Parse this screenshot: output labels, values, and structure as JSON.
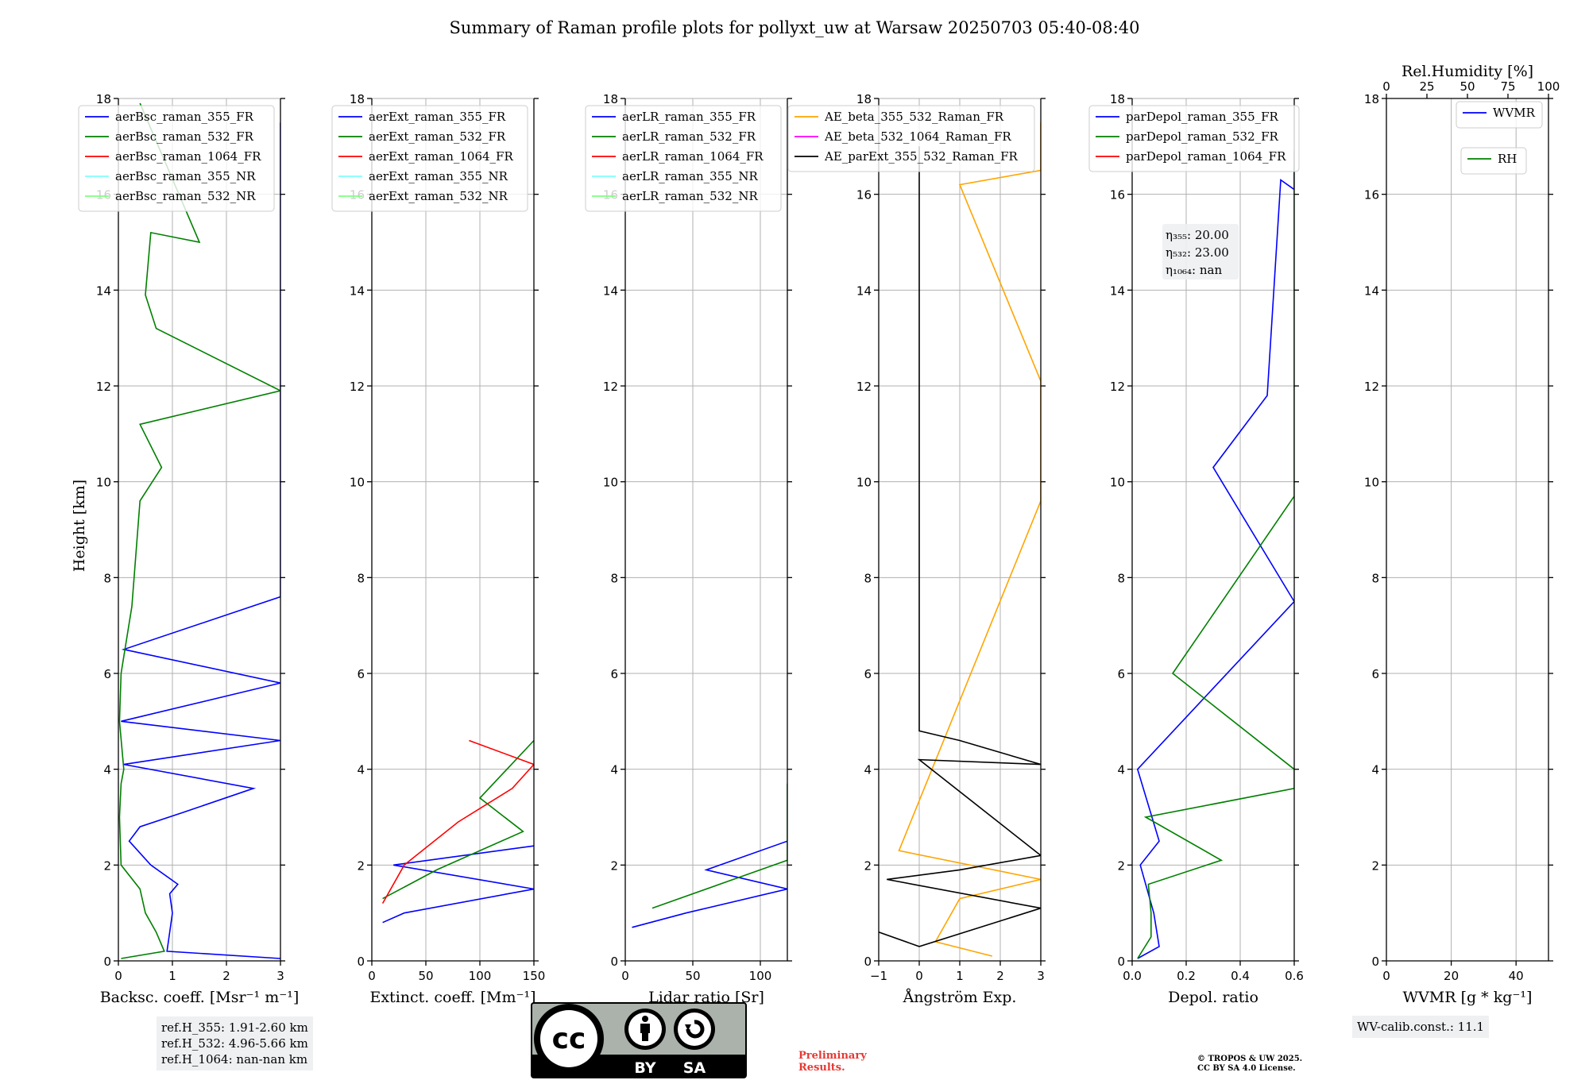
{
  "title": "Summary of Raman profile plots for pollyxt_uw at Warsaw 20250703 05:40-08:40",
  "ylabel": "Height [km]",
  "colors": {
    "blue": "#0000ff",
    "green": "#008000",
    "red": "#ff0000",
    "cyan": "#7fffff",
    "lightgreen": "#7fff7f",
    "orange": "#ffa500",
    "magenta": "#ff00ff",
    "black": "#000000"
  },
  "chart_data": [
    {
      "id": "bsc",
      "type": "line",
      "xlabel": "Backsc. coeff. [Msr⁻¹ m⁻¹]",
      "xlim": [
        0,
        3
      ],
      "ylim": [
        0,
        18
      ],
      "xticks": [
        "0",
        "1",
        "2",
        "3"
      ],
      "xtick_vals": [
        0,
        1,
        2,
        3
      ],
      "yticks": [
        "0",
        "2",
        "4",
        "6",
        "8",
        "10",
        "12",
        "14",
        "16",
        "18"
      ],
      "legend": [
        "aerBsc_raman_355_FR",
        "aerBsc_raman_532_FR",
        "aerBsc_raman_1064_FR",
        "aerBsc_raman_355_NR",
        "aerBsc_raman_532_NR"
      ],
      "legend_colors": [
        "blue",
        "green",
        "red",
        "cyan",
        "lightgreen"
      ],
      "series": [
        {
          "name": "aerBsc_raman_355_FR",
          "color": "blue",
          "points": [
            [
              3,
              0.05
            ],
            [
              0.9,
              0.2
            ],
            [
              0.95,
              0.6
            ],
            [
              1.0,
              1.0
            ],
            [
              0.95,
              1.4
            ],
            [
              1.1,
              1.6
            ],
            [
              0.6,
              2.0
            ],
            [
              0.2,
              2.5
            ],
            [
              0.4,
              2.8
            ],
            [
              1.2,
              3.1
            ],
            [
              2.5,
              3.6
            ],
            [
              0.1,
              4.1
            ],
            [
              3,
              4.6
            ],
            [
              0.05,
              5.0
            ],
            [
              3,
              5.8
            ],
            [
              0.1,
              6.5
            ],
            [
              3,
              7.6
            ],
            [
              3,
              9.5
            ],
            [
              3,
              10.0
            ],
            [
              3,
              11.0
            ],
            [
              3,
              12.0
            ],
            [
              3,
              12.8
            ],
            [
              3,
              14.5
            ],
            [
              3,
              15.5
            ],
            [
              3,
              17.5
            ]
          ]
        },
        {
          "name": "aerBsc_raman_532_FR",
          "color": "green",
          "points": [
            [
              0.05,
              0.05
            ],
            [
              0.85,
              0.2
            ],
            [
              0.7,
              0.6
            ],
            [
              0.5,
              1.0
            ],
            [
              0.4,
              1.5
            ],
            [
              0.05,
              2.0
            ],
            [
              0.02,
              3.0
            ],
            [
              0.05,
              3.7
            ],
            [
              0.1,
              4.0
            ],
            [
              0.02,
              5.0
            ],
            [
              0.05,
              6.0
            ],
            [
              0.25,
              7.4
            ],
            [
              0.4,
              9.6
            ],
            [
              0.8,
              10.3
            ],
            [
              0.4,
              11.2
            ],
            [
              3,
              11.9
            ],
            [
              0.7,
              13.2
            ],
            [
              0.5,
              13.9
            ],
            [
              0.6,
              15.2
            ],
            [
              1.5,
              15.0
            ],
            [
              0.4,
              17.9
            ]
          ]
        }
      ]
    },
    {
      "id": "ext",
      "type": "line",
      "xlabel": "Extinct. coeff. [Mm⁻¹]",
      "xlim": [
        0,
        150
      ],
      "ylim": [
        0,
        18
      ],
      "xticks": [
        "0",
        "50",
        "100",
        "150"
      ],
      "xtick_vals": [
        0,
        50,
        100,
        150
      ],
      "yticks": [
        "0",
        "2",
        "4",
        "6",
        "8",
        "10",
        "12",
        "14",
        "16",
        "18"
      ],
      "legend": [
        "aerExt_raman_355_FR",
        "aerExt_raman_532_FR",
        "aerExt_raman_1064_FR",
        "aerExt_raman_355_NR",
        "aerExt_raman_532_NR"
      ],
      "legend_colors": [
        "blue",
        "green",
        "red",
        "cyan",
        "lightgreen"
      ],
      "series": [
        {
          "name": "aerExt_raman_355_FR",
          "color": "blue",
          "points": [
            [
              10,
              0.8
            ],
            [
              30,
              1.0
            ],
            [
              150,
              1.5
            ],
            [
              20,
              2.0
            ],
            [
              150,
              2.4
            ]
          ]
        },
        {
          "name": "aerExt_raman_532_FR",
          "color": "green",
          "points": [
            [
              10,
              1.3
            ],
            [
              60,
              1.9
            ],
            [
              140,
              2.7
            ],
            [
              100,
              3.4
            ],
            [
              150,
              4.6
            ]
          ]
        },
        {
          "name": "aerExt_raman_1064_FR",
          "color": "red",
          "points": [
            [
              10,
              1.2
            ],
            [
              30,
              2.0
            ],
            [
              80,
              2.9
            ],
            [
              130,
              3.6
            ],
            [
              150,
              4.1
            ],
            [
              90,
              4.6
            ]
          ]
        }
      ]
    },
    {
      "id": "lr",
      "type": "line",
      "xlabel": "Lidar ratio [Sr]",
      "xlim": [
        0,
        120
      ],
      "ylim": [
        0,
        18
      ],
      "xticks": [
        "0",
        "50",
        "100"
      ],
      "xtick_vals": [
        0,
        50,
        100
      ],
      "yticks": [
        "0",
        "2",
        "4",
        "6",
        "8",
        "10",
        "12",
        "14",
        "16",
        "18"
      ],
      "legend": [
        "aerLR_raman_355_FR",
        "aerLR_raman_532_FR",
        "aerLR_raman_1064_FR",
        "aerLR_raman_355_NR",
        "aerLR_raman_532_NR"
      ],
      "legend_colors": [
        "blue",
        "green",
        "red",
        "cyan",
        "lightgreen"
      ],
      "series": [
        {
          "name": "aerLR_raman_355_FR",
          "color": "blue",
          "points": [
            [
              5,
              0.7
            ],
            [
              45,
              1.0
            ],
            [
              120,
              1.5
            ],
            [
              60,
              1.9
            ],
            [
              120,
              2.5
            ]
          ]
        },
        {
          "name": "aerLR_raman_532_FR",
          "color": "green",
          "points": [
            [
              20,
              1.1
            ],
            [
              80,
              1.7
            ],
            [
              120,
              2.1
            ],
            [
              120,
              3.0
            ],
            [
              120,
              3.7
            ]
          ]
        }
      ]
    },
    {
      "id": "ae",
      "type": "line",
      "xlabel": "Ångström Exp.",
      "xlim": [
        -1,
        3
      ],
      "ylim": [
        0,
        18
      ],
      "xticks": [
        "−1",
        "0",
        "1",
        "2",
        "3"
      ],
      "xtick_vals": [
        -1,
        0,
        1,
        2,
        3
      ],
      "yticks": [
        "0",
        "2",
        "4",
        "6",
        "8",
        "10",
        "12",
        "14",
        "16",
        "18"
      ],
      "legend": [
        "AE_beta_355_532_Raman_FR",
        "AE_beta_532_1064_Raman_FR",
        "AE_parExt_355_532_Raman_FR"
      ],
      "legend_colors": [
        "orange",
        "magenta",
        "black"
      ],
      "series": [
        {
          "name": "AE_beta_355_532_Raman_FR",
          "color": "orange",
          "points": [
            [
              1.8,
              0.1
            ],
            [
              0.4,
              0.4
            ],
            [
              1.0,
              1.3
            ],
            [
              3.0,
              1.7
            ],
            [
              -0.5,
              2.3
            ],
            [
              3,
              9.6
            ],
            [
              3,
              12.1
            ],
            [
              1.0,
              16.2
            ],
            [
              3,
              16.5
            ],
            [
              3,
              17.5
            ]
          ]
        },
        {
          "name": "AE_parExt_355_532_Raman_FR",
          "color": "black",
          "points": [
            [
              -1,
              0.6
            ],
            [
              0,
              0.3
            ],
            [
              3,
              1.1
            ],
            [
              -0.8,
              1.7
            ],
            [
              1.0,
              1.9
            ],
            [
              3,
              2.2
            ],
            [
              0,
              4.2
            ],
            [
              3,
              4.1
            ],
            [
              1,
              4.6
            ],
            [
              0,
              4.8
            ],
            [
              0,
              17
            ]
          ]
        }
      ]
    },
    {
      "id": "depol",
      "type": "line",
      "xlabel": "Depol. ratio",
      "xlim": [
        0,
        0.6
      ],
      "ylim": [
        0,
        18
      ],
      "xticks": [
        "0.0",
        "0.2",
        "0.4",
        "0.6"
      ],
      "xtick_vals": [
        0,
        0.2,
        0.4,
        0.6
      ],
      "yticks": [
        "0",
        "2",
        "4",
        "6",
        "8",
        "10",
        "12",
        "14",
        "16",
        "18"
      ],
      "legend": [
        "parDepol_raman_355_FR",
        "parDepol_raman_532_FR",
        "parDepol_raman_1064_FR"
      ],
      "legend_colors": [
        "blue",
        "green",
        "red"
      ],
      "annotation": [
        "η₃₅₅: 20.00",
        "η₅₃₂: 23.00",
        "η₁₀₆₄: nan"
      ],
      "series": [
        {
          "name": "parDepol_raman_355_FR",
          "color": "blue",
          "points": [
            [
              0.02,
              0.05
            ],
            [
              0.1,
              0.3
            ],
            [
              0.08,
              1.0
            ],
            [
              0.03,
              2.0
            ],
            [
              0.1,
              2.5
            ],
            [
              0.02,
              4
            ],
            [
              0.6,
              7.5
            ],
            [
              0.3,
              10.3
            ],
            [
              0.5,
              11.8
            ],
            [
              0.55,
              16.3
            ],
            [
              0.6,
              16.1
            ],
            [
              0.6,
              16.9
            ]
          ]
        },
        {
          "name": "parDepol_raman_532_FR",
          "color": "green",
          "points": [
            [
              0.02,
              0.05
            ],
            [
              0.07,
              0.5
            ],
            [
              0.07,
              1.0
            ],
            [
              0.06,
              1.6
            ],
            [
              0.33,
              2.1
            ],
            [
              0.05,
              3.0
            ],
            [
              0.6,
              3.6
            ],
            [
              0.6,
              4.0
            ],
            [
              0.15,
              6.0
            ],
            [
              0.6,
              9.7
            ],
            [
              0.6,
              11.4
            ],
            [
              0.6,
              12.1
            ],
            [
              0.6,
              14.4
            ],
            [
              0.6,
              14.7
            ],
            [
              0.6,
              16.6
            ]
          ]
        }
      ]
    },
    {
      "id": "wv",
      "type": "line",
      "xlabel": "WVMR [g * kg⁻¹]",
      "top_xlabel": "Rel.Humidity [%]",
      "xlim": [
        0,
        50
      ],
      "ylim": [
        0,
        18
      ],
      "xticks": [
        "0",
        "20",
        "40"
      ],
      "xtick_vals": [
        0,
        20,
        40
      ],
      "top_xticks": [
        "0",
        "25",
        "50",
        "75",
        "100"
      ],
      "top_xtick_vals": [
        0,
        25,
        50,
        75,
        100
      ],
      "yticks": [
        "0",
        "2",
        "4",
        "6",
        "8",
        "10",
        "12",
        "14",
        "16",
        "18"
      ],
      "legend": [
        "WVMR"
      ],
      "legend_colors": [
        "blue"
      ],
      "legend2": [
        "RH"
      ],
      "legend2_colors": [
        "green"
      ],
      "series": []
    }
  ],
  "notes": {
    "refh": [
      "ref.H_355: 1.91-2.60 km",
      "ref.H_532: 4.96-5.66 km",
      "ref.H_1064: nan-nan km"
    ],
    "wvcalib": "WV-calib.const.: 11.1",
    "prelim": [
      "Preliminary",
      "Results."
    ],
    "copyright": [
      "© TROPOS & UW 2025.",
      "CC BY SA 4.0 License."
    ],
    "cc_by": "BY",
    "cc_sa": "SA"
  }
}
